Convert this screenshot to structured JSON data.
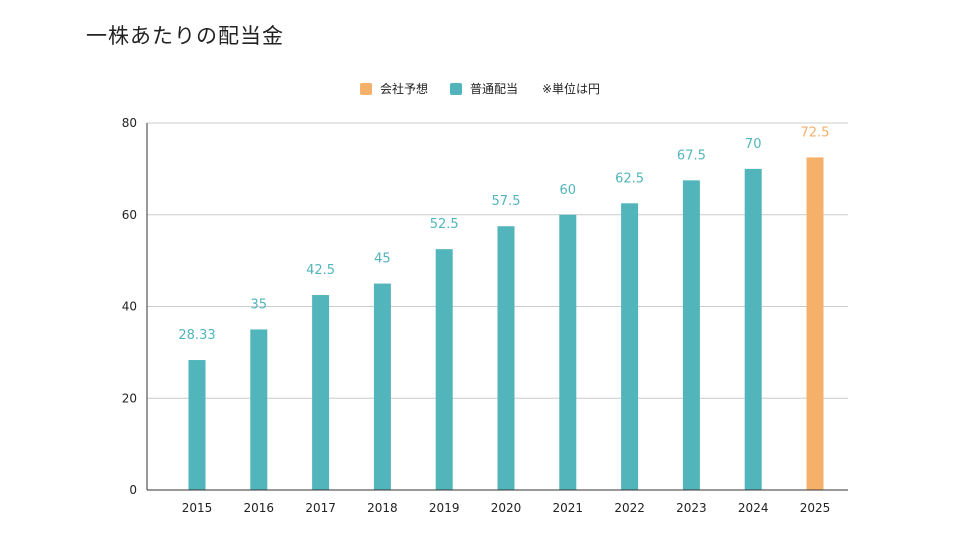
{
  "title": "一株あたりの配当金",
  "legend": {
    "forecast_label": "会社予想",
    "actual_label": "普通配当",
    "unit_note": "※単位は円"
  },
  "colors": {
    "actual": "#52b5bb",
    "forecast": "#f5b06a",
    "grid": "#cccccc",
    "axis": "#333333"
  },
  "chart_data": {
    "type": "bar",
    "title": "一株あたりの配当金",
    "categories": [
      "2015",
      "2016",
      "2017",
      "2018",
      "2019",
      "2020",
      "2021",
      "2022",
      "2023",
      "2024",
      "2025"
    ],
    "series": [
      {
        "name": "普通配当",
        "values": [
          28.33,
          35,
          42.5,
          45,
          52.5,
          57.5,
          60,
          62.5,
          67.5,
          70,
          null
        ]
      },
      {
        "name": "会社予想",
        "values": [
          null,
          null,
          null,
          null,
          null,
          null,
          null,
          null,
          null,
          null,
          72.5
        ]
      }
    ],
    "data_labels": [
      "28.33",
      "35",
      "42.5",
      "45",
      "52.5",
      "57.5",
      "60",
      "62.5",
      "67.5",
      "70",
      "72.5"
    ],
    "yticks": [
      "0",
      "20",
      "40",
      "60",
      "80"
    ],
    "ylim": [
      0,
      80
    ],
    "grid": true,
    "legend_position": "top-center",
    "xlabel": "",
    "ylabel": ""
  }
}
